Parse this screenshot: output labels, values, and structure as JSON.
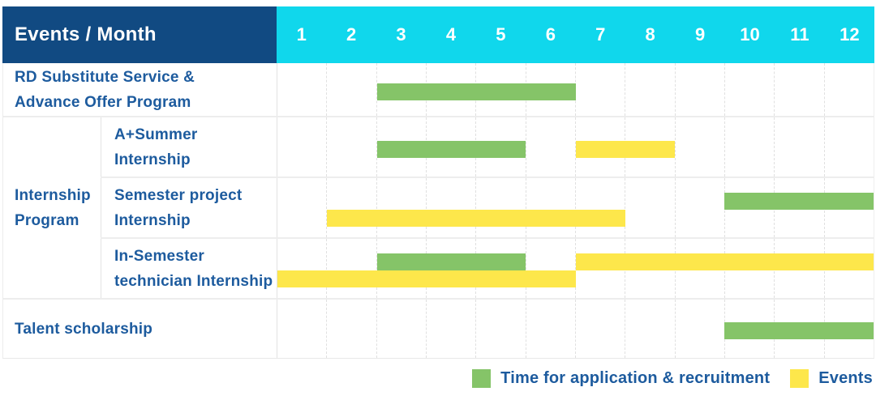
{
  "header": {
    "title": "Events / Month",
    "months": [
      "1",
      "2",
      "3",
      "4",
      "5",
      "6",
      "7",
      "8",
      "9",
      "10",
      "11",
      "12"
    ]
  },
  "colors": {
    "header_bg": "#114a82",
    "months_bg": "#10d7ec",
    "label_text": "#1d5b9e",
    "application_green": "#85c468",
    "events_yellow": "#fde74b",
    "grid_line": "#e3e3e3"
  },
  "legend": {
    "items": [
      {
        "series": "application",
        "label": "Time for application & recruitment",
        "color": "#85c468"
      },
      {
        "series": "events",
        "label": "Events",
        "color": "#fde74b"
      }
    ]
  },
  "chart_data": {
    "type": "gantt",
    "x_axis": {
      "label": "Month",
      "min": 1,
      "max": 12,
      "ticks": [
        "1",
        "2",
        "3",
        "4",
        "5",
        "6",
        "7",
        "8",
        "9",
        "10",
        "11",
        "12"
      ]
    },
    "series_colors": {
      "application": "#85c468",
      "events": "#fde74b"
    },
    "series_legend": {
      "application": "Time for application & recruitment",
      "events": "Events"
    },
    "group_label": "Internship\nProgram",
    "rows": [
      {
        "label": "RD Substitute Service &\nAdvance Offer Program",
        "group": null,
        "bars": [
          {
            "series": "application",
            "start_month": 3,
            "end_month": 6,
            "lane": "single"
          }
        ]
      },
      {
        "label": "A+Summer\nInternship",
        "group": "Internship Program",
        "bars": [
          {
            "series": "application",
            "start_month": 3,
            "end_month": 5,
            "lane": "single"
          },
          {
            "series": "events",
            "start_month": 7,
            "end_month": 8,
            "lane": "single"
          }
        ]
      },
      {
        "label": "Semester project\nInternship",
        "group": "Internship Program",
        "bars": [
          {
            "series": "application",
            "start_month": 10,
            "end_month": 12,
            "lane": "top"
          },
          {
            "series": "events",
            "start_month": 2,
            "end_month": 7,
            "lane": "bottom"
          }
        ]
      },
      {
        "label": "In-Semester\ntechnician Internship",
        "group": "Internship Program",
        "bars": [
          {
            "series": "application",
            "start_month": 3,
            "end_month": 5,
            "lane": "top"
          },
          {
            "series": "events",
            "start_month": 7,
            "end_month": 12,
            "lane": "top"
          },
          {
            "series": "events",
            "start_month": 1,
            "end_month": 6,
            "lane": "bottom"
          }
        ]
      },
      {
        "label": "Talent scholarship",
        "group": null,
        "bars": [
          {
            "series": "application",
            "start_month": 10,
            "end_month": 12,
            "lane": "single"
          }
        ]
      }
    ]
  }
}
